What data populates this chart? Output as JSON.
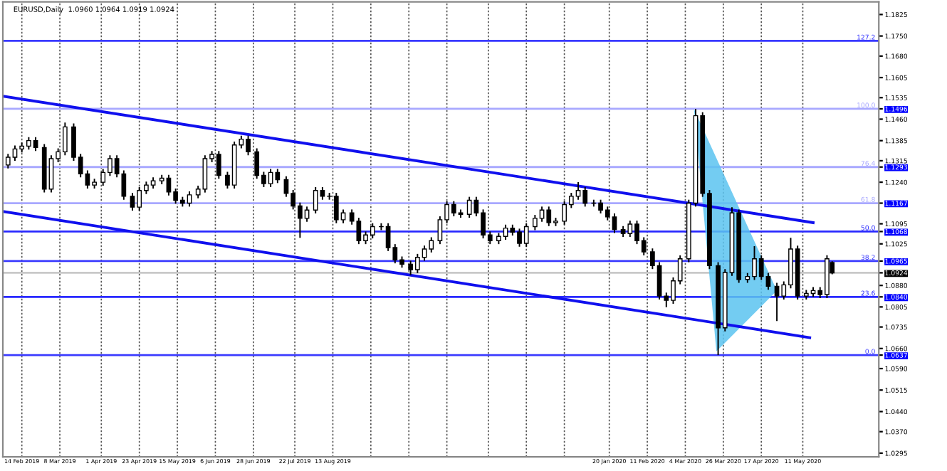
{
  "chart_data": {
    "type": "candlestick",
    "title": "EURUSD,Daily  1.0960 1.0964 1.0919 1.0924",
    "x": [
      "2019-02-06",
      "2019-02-10",
      "2019-02-14",
      "2019-02-18",
      "2019-02-22",
      "2019-02-27",
      "2019-03-03",
      "2019-03-07",
      "2019-03-11",
      "2019-03-16",
      "2019-03-20",
      "2019-03-24",
      "2019-03-28",
      "2019-04-02",
      "2019-04-06",
      "2019-04-10",
      "2019-04-14",
      "2019-04-19",
      "2019-04-23",
      "2019-04-27",
      "2019-05-01",
      "2019-05-06",
      "2019-05-10",
      "2019-05-14",
      "2019-05-18",
      "2019-05-22",
      "2019-05-27",
      "2019-05-31",
      "2019-06-04",
      "2019-06-08",
      "2019-06-13",
      "2019-06-17",
      "2019-06-21",
      "2019-06-25",
      "2019-06-30",
      "2019-07-04",
      "2019-07-08",
      "2019-07-12",
      "2019-07-17",
      "2019-07-21",
      "2019-07-25",
      "2019-07-29",
      "2019-08-03",
      "2019-08-07",
      "2019-08-11",
      "2019-08-15",
      "2019-08-19",
      "2019-08-24",
      "2019-08-28",
      "2019-09-01",
      "2019-09-05",
      "2019-09-10",
      "2019-09-14",
      "2019-09-18",
      "2019-09-22",
      "2019-09-27",
      "2019-10-01",
      "2019-10-05",
      "2019-10-09",
      "2019-10-14",
      "2019-10-18",
      "2019-10-22",
      "2019-10-26",
      "2019-10-31",
      "2019-11-04",
      "2019-11-08",
      "2019-11-12",
      "2019-11-17",
      "2019-11-21",
      "2019-11-25",
      "2019-11-29",
      "2019-12-03",
      "2019-12-08",
      "2019-12-12",
      "2019-12-16",
      "2019-12-20",
      "2019-12-25",
      "2019-12-29",
      "2020-01-02",
      "2020-01-06",
      "2020-01-11",
      "2020-01-15",
      "2020-01-19",
      "2020-01-23",
      "2020-01-28",
      "2020-02-01",
      "2020-02-05",
      "2020-02-09",
      "2020-02-14",
      "2020-02-18",
      "2020-02-22",
      "2020-02-26",
      "2020-03-01",
      "2020-03-06",
      "2020-03-10",
      "2020-03-14",
      "2020-03-18",
      "2020-03-23",
      "2020-03-27",
      "2020-03-31",
      "2020-04-04",
      "2020-04-09",
      "2020-04-13",
      "2020-04-17",
      "2020-04-21",
      "2020-04-26",
      "2020-04-30",
      "2020-05-04",
      "2020-05-08",
      "2020-05-13",
      "2020-05-17",
      "2020-05-21",
      "2020-05-25",
      "2020-05-28"
    ],
    "ohlc": [
      [
        1.13,
        1.1339,
        1.1288,
        1.1327
      ],
      [
        1.1327,
        1.1368,
        1.1315,
        1.1356
      ],
      [
        1.1356,
        1.1378,
        1.1344,
        1.1366
      ],
      [
        1.1366,
        1.1397,
        1.1354,
        1.1385
      ],
      [
        1.1385,
        1.1397,
        1.1349,
        1.1361
      ],
      [
        1.1361,
        1.1373,
        1.1204,
        1.1216
      ],
      [
        1.1216,
        1.1334,
        1.1204,
        1.1322
      ],
      [
        1.1322,
        1.1358,
        1.131,
        1.1346
      ],
      [
        1.1346,
        1.1448,
        1.1334,
        1.1433
      ],
      [
        1.1433,
        1.1445,
        1.1315,
        1.1327
      ],
      [
        1.1327,
        1.1339,
        1.1257,
        1.1269
      ],
      [
        1.1269,
        1.1281,
        1.1218,
        1.123
      ],
      [
        1.123,
        1.1252,
        1.1218,
        1.124
      ],
      [
        1.124,
        1.1286,
        1.1228,
        1.1274
      ],
      [
        1.1274,
        1.1334,
        1.1262,
        1.1322
      ],
      [
        1.1322,
        1.1334,
        1.1257,
        1.1269
      ],
      [
        1.1269,
        1.1281,
        1.1179,
        1.1191
      ],
      [
        1.1191,
        1.1203,
        1.1141,
        1.1153
      ],
      [
        1.1153,
        1.1223,
        1.1141,
        1.1211
      ],
      [
        1.1211,
        1.1242,
        1.1199,
        1.123
      ],
      [
        1.123,
        1.1257,
        1.1218,
        1.1245
      ],
      [
        1.1245,
        1.1266,
        1.1233,
        1.1254
      ],
      [
        1.1254,
        1.1266,
        1.1194,
        1.1206
      ],
      [
        1.1206,
        1.1218,
        1.1165,
        1.1177
      ],
      [
        1.1177,
        1.1189,
        1.1155,
        1.1167
      ],
      [
        1.1167,
        1.1208,
        1.1155,
        1.1196
      ],
      [
        1.1196,
        1.1228,
        1.1184,
        1.1216
      ],
      [
        1.1216,
        1.1334,
        1.1204,
        1.1322
      ],
      [
        1.1322,
        1.1349,
        1.131,
        1.1337
      ],
      [
        1.1337,
        1.1349,
        1.1252,
        1.1264
      ],
      [
        1.1264,
        1.1276,
        1.1218,
        1.123
      ],
      [
        1.123,
        1.1382,
        1.1218,
        1.137
      ],
      [
        1.137,
        1.1402,
        1.1358,
        1.139
      ],
      [
        1.139,
        1.1402,
        1.1334,
        1.1346
      ],
      [
        1.1346,
        1.1358,
        1.1252,
        1.1264
      ],
      [
        1.1264,
        1.1276,
        1.1223,
        1.1235
      ],
      [
        1.1235,
        1.1286,
        1.1223,
        1.1274
      ],
      [
        1.1274,
        1.1286,
        1.1237,
        1.1249
      ],
      [
        1.1249,
        1.1261,
        1.1189,
        1.1201
      ],
      [
        1.1201,
        1.1213,
        1.1145,
        1.1157
      ],
      [
        1.1157,
        1.1169,
        1.1046,
        1.1114
      ],
      [
        1.1114,
        1.1155,
        1.1102,
        1.1143
      ],
      [
        1.1143,
        1.1223,
        1.1131,
        1.1211
      ],
      [
        1.1211,
        1.1223,
        1.1179,
        1.1191
      ],
      [
        1.1191,
        1.1203,
        1.1179,
        1.1191
      ],
      [
        1.1191,
        1.1203,
        1.1097,
        1.1109
      ],
      [
        1.1109,
        1.1145,
        1.1097,
        1.1133
      ],
      [
        1.1133,
        1.1145,
        1.1092,
        1.1104
      ],
      [
        1.1104,
        1.1116,
        1.1024,
        1.1036
      ],
      [
        1.1036,
        1.1068,
        1.1024,
        1.1056
      ],
      [
        1.1056,
        1.1097,
        1.1044,
        1.1085
      ],
      [
        1.1085,
        1.1097,
        1.1073,
        1.1085
      ],
      [
        1.1085,
        1.1097,
        1.1,
        1.1012
      ],
      [
        1.1012,
        1.1024,
        1.0957,
        1.0969
      ],
      [
        1.0969,
        1.0981,
        1.0942,
        1.0954
      ],
      [
        1.0954,
        1.0966,
        1.0916,
        1.0935
      ],
      [
        1.0935,
        1.099,
        1.0923,
        1.0978
      ],
      [
        1.0978,
        1.1019,
        1.0966,
        1.1007
      ],
      [
        1.1007,
        1.1048,
        1.0995,
        1.1036
      ],
      [
        1.1036,
        1.1121,
        1.1024,
        1.1109
      ],
      [
        1.1109,
        1.1174,
        1.1097,
        1.1162
      ],
      [
        1.1162,
        1.1174,
        1.1121,
        1.1133
      ],
      [
        1.1133,
        1.1145,
        1.1116,
        1.1128
      ],
      [
        1.1128,
        1.1189,
        1.1116,
        1.1177
      ],
      [
        1.1177,
        1.1189,
        1.1121,
        1.1133
      ],
      [
        1.1133,
        1.1145,
        1.1044,
        1.1056
      ],
      [
        1.1056,
        1.1068,
        1.1024,
        1.1036
      ],
      [
        1.1036,
        1.1063,
        1.1024,
        1.1051
      ],
      [
        1.1051,
        1.1092,
        1.1039,
        1.108
      ],
      [
        1.108,
        1.1092,
        1.1054,
        1.1066
      ],
      [
        1.1066,
        1.1078,
        1.1015,
        1.1027
      ],
      [
        1.1027,
        1.1097,
        1.1015,
        1.1085
      ],
      [
        1.1085,
        1.1126,
        1.1073,
        1.1114
      ],
      [
        1.1114,
        1.1155,
        1.1102,
        1.1143
      ],
      [
        1.1143,
        1.1155,
        1.1087,
        1.1099
      ],
      [
        1.1099,
        1.1116,
        1.1087,
        1.1104
      ],
      [
        1.1104,
        1.1174,
        1.1092,
        1.1162
      ],
      [
        1.1162,
        1.1203,
        1.115,
        1.1191
      ],
      [
        1.1191,
        1.124,
        1.1179,
        1.1211
      ],
      [
        1.1211,
        1.1223,
        1.1155,
        1.1167
      ],
      [
        1.1167,
        1.1179,
        1.1155,
        1.1167
      ],
      [
        1.1167,
        1.1179,
        1.1131,
        1.1143
      ],
      [
        1.1143,
        1.1155,
        1.1107,
        1.1119
      ],
      [
        1.1119,
        1.1131,
        1.1063,
        1.1075
      ],
      [
        1.1075,
        1.1087,
        1.1049,
        1.1061
      ],
      [
        1.1061,
        1.1106,
        1.1049,
        1.1094
      ],
      [
        1.1094,
        1.1106,
        1.1024,
        1.1036
      ],
      [
        1.1036,
        1.1048,
        1.0985,
        1.0997
      ],
      [
        1.0997,
        1.1009,
        1.0937,
        1.0949
      ],
      [
        1.0949,
        1.0961,
        1.0831,
        1.0843
      ],
      [
        1.0843,
        1.0855,
        1.0804,
        1.0828
      ],
      [
        1.0828,
        1.0908,
        1.0816,
        1.0896
      ],
      [
        1.0896,
        1.0985,
        1.0884,
        1.0973
      ],
      [
        1.0973,
        1.1179,
        1.0961,
        1.1167
      ],
      [
        1.1167,
        1.1496,
        1.1155,
        1.1472
      ],
      [
        1.1472,
        1.1484,
        1.1189,
        1.1201
      ],
      [
        1.1201,
        1.1213,
        1.0937,
        1.0949
      ],
      [
        1.0949,
        1.0961,
        1.0637,
        1.0732
      ],
      [
        1.0732,
        1.0937,
        1.072,
        1.0925
      ],
      [
        1.0925,
        1.1153,
        1.0913,
        1.1133
      ],
      [
        1.1133,
        1.1145,
        1.0889,
        1.0901
      ],
      [
        1.0901,
        1.0923,
        1.0889,
        1.0911
      ],
      [
        1.0911,
        1.1017,
        1.0899,
        1.0973
      ],
      [
        1.0973,
        1.0985,
        1.0899,
        1.0911
      ],
      [
        1.0911,
        1.0923,
        1.0865,
        1.0877
      ],
      [
        1.0877,
        1.0889,
        1.0756,
        1.0843
      ],
      [
        1.0843,
        1.0894,
        1.0831,
        1.0882
      ],
      [
        1.0882,
        1.1046,
        1.087,
        1.1007
      ],
      [
        1.1007,
        1.1019,
        1.0831,
        1.0843
      ],
      [
        1.0843,
        1.0864,
        1.0831,
        1.0852
      ],
      [
        1.0852,
        1.0874,
        1.084,
        1.0862
      ],
      [
        1.0862,
        1.0874,
        1.0836,
        1.0848
      ],
      [
        1.0848,
        1.0985,
        1.0836,
        1.0973
      ],
      [
        1.096,
        1.0964,
        1.0919,
        1.0924
      ]
    ],
    "series": [
      {
        "type": "line",
        "x": [
          "2019-02-03",
          "2020-05-17"
        ],
        "values": [
          1.154,
          1.1099
        ],
        "color": "#1010ee"
      },
      {
        "type": "line",
        "x": [
          "2019-02-03",
          "2020-05-15"
        ],
        "values": [
          1.1138,
          1.0698
        ],
        "color": "#1010ee"
      },
      {
        "type": "area",
        "x": [
          "2020-03-09",
          "2020-03-22",
          "2020-04-26",
          "2020-03-09"
        ],
        "values": [
          1.1496,
          1.065,
          1.0862,
          1.1496
        ],
        "color": "#5bc3f0"
      }
    ],
    "ref_lines": [
      {
        "axis": "y",
        "value": 1.1733,
        "color": "#3a3aff"
      },
      {
        "axis": "y",
        "value": 1.1496,
        "color": "#a8a8ff"
      },
      {
        "axis": "y",
        "value": 1.1293,
        "color": "#a8a8ff"
      },
      {
        "axis": "y",
        "value": 1.1167,
        "color": "#a8a8ff"
      },
      {
        "axis": "y",
        "value": 1.1068,
        "color": "#2a2aff"
      },
      {
        "axis": "y",
        "value": 1.0965,
        "color": "#3a3aff"
      },
      {
        "axis": "y",
        "value": 1.084,
        "color": "#2a2aff"
      },
      {
        "axis": "y",
        "value": 1.0637,
        "color": "#3a3aff"
      },
      {
        "axis": "y",
        "value": 1.0924,
        "color": "#c8c8c8"
      }
    ],
    "annotations": [
      {
        "text": "127.2",
        "x": "2020-06-22",
        "y": 1.1733
      },
      {
        "text": "100.0",
        "x": "2020-06-22",
        "y": 1.1496
      },
      {
        "text": "76.4",
        "x": "2020-06-22",
        "y": 1.1293
      },
      {
        "text": "61.8",
        "x": "2020-06-22",
        "y": 1.1167
      },
      {
        "text": "50.0",
        "x": "2020-06-22",
        "y": 1.1068
      },
      {
        "text": "38.2",
        "x": "2020-06-22",
        "y": 1.0965
      },
      {
        "text": "23.6",
        "x": "2020-06-22",
        "y": 1.084
      },
      {
        "text": "0.0",
        "x": "2020-06-22",
        "y": 1.0637
      }
    ],
    "xlim": [
      "2019-02-03",
      "2020-06-24"
    ],
    "xticks": [
      {
        "value": "2019-02-14",
        "label": "14 Feb 2019"
      },
      {
        "value": "2019-03-08",
        "label": "8 Mar 2019"
      },
      {
        "value": "2019-04-01",
        "label": "1 Apr 2019"
      },
      {
        "value": "2019-04-23",
        "label": "23 Apr 2019"
      },
      {
        "value": "2019-05-15",
        "label": "15 May 2019"
      },
      {
        "value": "2019-06-06",
        "label": "6 Jun 2019"
      },
      {
        "value": "2019-06-28",
        "label": "28 Jun 2019"
      },
      {
        "value": "2019-07-22",
        "label": "22 Jul 2019"
      },
      {
        "value": "2019-08-13",
        "label": "13 Aug 2019"
      },
      {
        "value": "2019-09-04",
        "label": null
      },
      {
        "value": "2019-09-26",
        "label": null
      },
      {
        "value": "2019-10-18",
        "label": null
      },
      {
        "value": "2019-11-11",
        "label": null
      },
      {
        "value": "2019-12-03",
        "label": null
      },
      {
        "value": "2019-12-25",
        "label": null
      },
      {
        "value": "2020-01-20",
        "label": "20 Jan 2020"
      },
      {
        "value": "2020-02-11",
        "label": "11 Feb 2020"
      },
      {
        "value": "2020-03-04",
        "label": "4 Mar 2020"
      },
      {
        "value": "2020-03-26",
        "label": "26 Mar 2020"
      },
      {
        "value": "2020-04-17",
        "label": "17 Apr 2020"
      },
      {
        "value": "2020-05-11",
        "label": "11 May 2020"
      }
    ],
    "ylim": [
      1.0282,
      1.1869
    ],
    "yticks": [
      {
        "value": 1.0295,
        "label": "1.0295"
      },
      {
        "value": 1.037,
        "label": "1.0370"
      },
      {
        "value": 1.044,
        "label": "1.0440"
      },
      {
        "value": 1.0515,
        "label": "1.0515"
      },
      {
        "value": 1.059,
        "label": "1.0590"
      },
      {
        "value": 1.066,
        "label": "1.0660"
      },
      {
        "value": 1.0735,
        "label": "1.0735"
      },
      {
        "value": 1.0805,
        "label": "1.0805"
      },
      {
        "value": 1.088,
        "label": "1.0880"
      },
      {
        "value": 1.1025,
        "label": "1.1025"
      },
      {
        "value": 1.1095,
        "label": "1.1095"
      },
      {
        "value": 1.124,
        "label": "1.1240"
      },
      {
        "value": 1.1315,
        "label": "1.1315"
      },
      {
        "value": 1.1385,
        "label": "1.1385"
      },
      {
        "value": 1.146,
        "label": "1.1460"
      },
      {
        "value": 1.1535,
        "label": "1.1535"
      },
      {
        "value": 1.1605,
        "label": "1.1605"
      },
      {
        "value": 1.168,
        "label": "1.1680"
      },
      {
        "value": 1.175,
        "label": "1.1750"
      },
      {
        "value": 1.1825,
        "label": "1.1825"
      },
      {
        "value": 1.1496,
        "label": "1.1496"
      },
      {
        "value": 1.1293,
        "label": "1.1293"
      },
      {
        "value": 1.1167,
        "label": "1.1167"
      },
      {
        "value": 1.1068,
        "label": "1.1068"
      },
      {
        "value": 1.0965,
        "label": "1.0965"
      },
      {
        "value": 1.084,
        "label": "1.0840"
      },
      {
        "value": 1.0637,
        "label": "1.0637"
      },
      {
        "value": 1.0924,
        "label": "1.0924"
      }
    ],
    "grid": "x"
  }
}
